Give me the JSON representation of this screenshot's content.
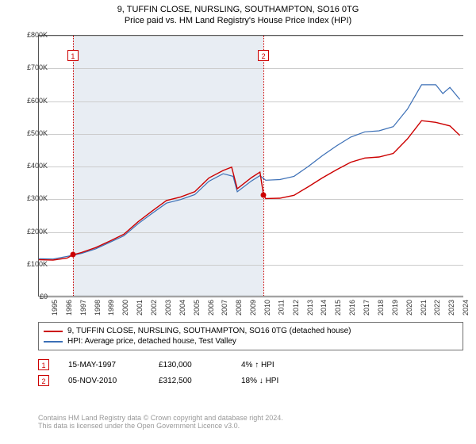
{
  "title": "9, TUFFIN CLOSE, NURSLING, SOUTHAMPTON, SO16 0TG",
  "subtitle": "Price paid vs. HM Land Registry's House Price Index (HPI)",
  "chart": {
    "type": "line",
    "background_color": "#ffffff",
    "grid_color": "#cccccc",
    "shade_color": "#e8edf3",
    "shade_from_year": 1997.4,
    "shade_to_year": 2010.85,
    "xlim": [
      1995,
      2025
    ],
    "xticks": [
      1995,
      1996,
      1997,
      1998,
      1999,
      2000,
      2001,
      2002,
      2003,
      2004,
      2005,
      2006,
      2007,
      2008,
      2009,
      2010,
      2011,
      2012,
      2013,
      2014,
      2015,
      2016,
      2017,
      2018,
      2019,
      2020,
      2021,
      2022,
      2023,
      2024
    ],
    "ylim": [
      0,
      800000
    ],
    "ytick_step": 100000,
    "ylabels": [
      "£0",
      "£100K",
      "£200K",
      "£300K",
      "£400K",
      "£500K",
      "£600K",
      "£700K",
      "£800K"
    ],
    "label_fontsize": 9,
    "series": [
      {
        "name": "hpi",
        "label": "HPI: Average price, detached house, Test Valley",
        "color": "#3b6fb6",
        "line_width": 1.2,
        "points": [
          [
            1995,
            118000
          ],
          [
            1996,
            117000
          ],
          [
            1997,
            125000
          ],
          [
            1998,
            134000
          ],
          [
            1999,
            148000
          ],
          [
            2000,
            168000
          ],
          [
            2001,
            188000
          ],
          [
            2002,
            225000
          ],
          [
            2003,
            257000
          ],
          [
            2004,
            288000
          ],
          [
            2005,
            299000
          ],
          [
            2006,
            314000
          ],
          [
            2007,
            355000
          ],
          [
            2008,
            378000
          ],
          [
            2008.7,
            370000
          ],
          [
            2009,
            323000
          ],
          [
            2010,
            356000
          ],
          [
            2010.6,
            372000
          ],
          [
            2011,
            358000
          ],
          [
            2012,
            360000
          ],
          [
            2013,
            370000
          ],
          [
            2014,
            400000
          ],
          [
            2015,
            433000
          ],
          [
            2016,
            463000
          ],
          [
            2017,
            490000
          ],
          [
            2018,
            506000
          ],
          [
            2019,
            509000
          ],
          [
            2020,
            522000
          ],
          [
            2021,
            575000
          ],
          [
            2022,
            650000
          ],
          [
            2023,
            650000
          ],
          [
            2023.5,
            623000
          ],
          [
            2024,
            642000
          ],
          [
            2024.7,
            605000
          ]
        ]
      },
      {
        "name": "property",
        "label": "9, TUFFIN CLOSE, NURSLING, SOUTHAMPTON, SO16 0TG (detached house)",
        "color": "#cc0000",
        "line_width": 1.4,
        "points": [
          [
            1995,
            115000
          ],
          [
            1996,
            114000
          ],
          [
            1997,
            120000
          ],
          [
            1997.4,
            130000
          ],
          [
            1998,
            137000
          ],
          [
            1999,
            152000
          ],
          [
            2000,
            172000
          ],
          [
            2001,
            193000
          ],
          [
            2002,
            231000
          ],
          [
            2003,
            264000
          ],
          [
            2004,
            296000
          ],
          [
            2005,
            307000
          ],
          [
            2006,
            323000
          ],
          [
            2007,
            365000
          ],
          [
            2008,
            388000
          ],
          [
            2008.6,
            398000
          ],
          [
            2009,
            332000
          ],
          [
            2010,
            366000
          ],
          [
            2010.6,
            383000
          ],
          [
            2010.85,
            312500
          ],
          [
            2011,
            302000
          ],
          [
            2012,
            303000
          ],
          [
            2013,
            312000
          ],
          [
            2014,
            338000
          ],
          [
            2015,
            365000
          ],
          [
            2016,
            390000
          ],
          [
            2017,
            413000
          ],
          [
            2018,
            426000
          ],
          [
            2019,
            429000
          ],
          [
            2020,
            440000
          ],
          [
            2021,
            484000
          ],
          [
            2022,
            540000
          ],
          [
            2023,
            535000
          ],
          [
            2024,
            524000
          ],
          [
            2024.7,
            495000
          ]
        ]
      }
    ],
    "markers": [
      {
        "n": "1",
        "year": 1997.4,
        "value": 130000
      },
      {
        "n": "2",
        "year": 2010.85,
        "value": 312500
      }
    ],
    "marker_color": "#cc0000"
  },
  "legend": {
    "border_color": "#707070",
    "rows": [
      {
        "color": "#cc0000",
        "label": "9, TUFFIN CLOSE, NURSLING, SOUTHAMPTON, SO16 0TG (detached house)"
      },
      {
        "color": "#3b6fb6",
        "label": "HPI: Average price, detached house, Test Valley"
      }
    ]
  },
  "transactions": [
    {
      "n": "1",
      "date": "15-MAY-1997",
      "price": "£130,000",
      "pct": "4% ↑ HPI"
    },
    {
      "n": "2",
      "date": "05-NOV-2010",
      "price": "£312,500",
      "pct": "18% ↓ HPI"
    }
  ],
  "footer": {
    "line1": "Contains HM Land Registry data © Crown copyright and database right 2024.",
    "line2": "This data is licensed under the Open Government Licence v3.0."
  }
}
